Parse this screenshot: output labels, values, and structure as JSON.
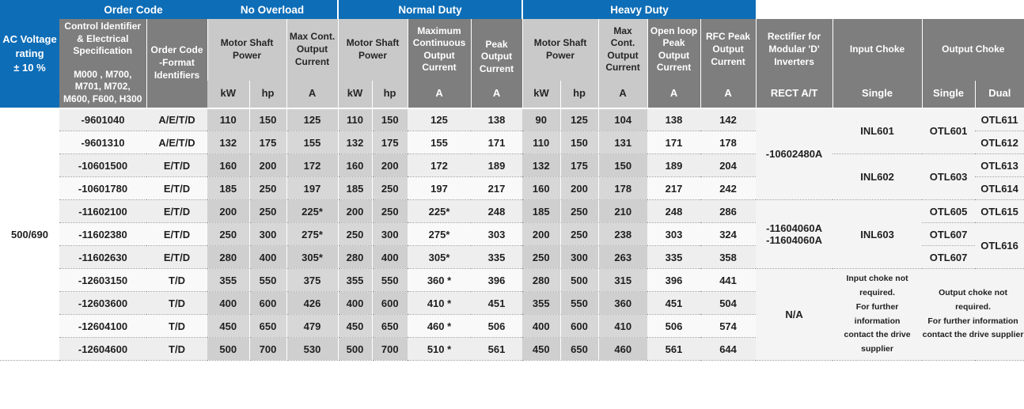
{
  "groups": {
    "order_code": "Order Code",
    "no_overload": "No Overload",
    "normal_duty": "Normal Duty",
    "heavy_duty": "Heavy Duty"
  },
  "voltage": {
    "label_lines": [
      "AC Voltage",
      "rating",
      "± 10 %"
    ],
    "value": "500/690"
  },
  "headers": {
    "control_title": "Control Identifier & Electrical Specification",
    "control_models": "M000 , M700, M701, M702, M600, F600, H300",
    "order_format": "Order Code -Format Identifiers",
    "motor_shaft_power": "Motor Shaft Power",
    "max_cont_output_current": "Max Cont. Output Current",
    "max_continuous_output_current": "Maximum Continuous Output Current",
    "peak_output_current": "Peak Output Current",
    "open_loop_peak": "Open loop Peak Output Current",
    "rfc_peak": "RFC Peak Output Current",
    "rectifier": "Rectifier for Modular 'D' Inverters",
    "input_choke": "Input Choke",
    "output_choke": "Output Choke",
    "units": {
      "kw": "kW",
      "hp": "hp",
      "a": "A",
      "rect": "RECT A/T",
      "single": "Single",
      "dual": "Dual"
    }
  },
  "rows": [
    {
      "code": "-9601040",
      "fmt": "A/E/T/D",
      "no_kw": "110",
      "no_hp": "150",
      "no_a": "125",
      "nd_kw": "110",
      "nd_hp": "150",
      "nd_a": "125",
      "nd_pk": "138",
      "hd_kw": "90",
      "hd_hp": "125",
      "hd_a": "104",
      "hd_ol": "138",
      "hd_rfc": "142"
    },
    {
      "code": "-9601310",
      "fmt": "A/E/T/D",
      "no_kw": "132",
      "no_hp": "175",
      "no_a": "155",
      "nd_kw": "132",
      "nd_hp": "175",
      "nd_a": "155",
      "nd_pk": "171",
      "hd_kw": "110",
      "hd_hp": "150",
      "hd_a": "131",
      "hd_ol": "171",
      "hd_rfc": "178"
    },
    {
      "code": "-10601500",
      "fmt": "E/T/D",
      "no_kw": "160",
      "no_hp": "200",
      "no_a": "172",
      "nd_kw": "160",
      "nd_hp": "200",
      "nd_a": "172",
      "nd_pk": "189",
      "hd_kw": "132",
      "hd_hp": "175",
      "hd_a": "150",
      "hd_ol": "189",
      "hd_rfc": "204"
    },
    {
      "code": "-10601780",
      "fmt": "E/T/D",
      "no_kw": "185",
      "no_hp": "250",
      "no_a": "197",
      "nd_kw": "185",
      "nd_hp": "250",
      "nd_a": "197",
      "nd_pk": "217",
      "hd_kw": "160",
      "hd_hp": "200",
      "hd_a": "178",
      "hd_ol": "217",
      "hd_rfc": "242"
    },
    {
      "code": "-11602100",
      "fmt": "E/T/D",
      "no_kw": "200",
      "no_hp": "250",
      "no_a": "225*",
      "nd_kw": "200",
      "nd_hp": "250",
      "nd_a": "225*",
      "nd_pk": "248",
      "hd_kw": "185",
      "hd_hp": "250",
      "hd_a": "210",
      "hd_ol": "248",
      "hd_rfc": "286"
    },
    {
      "code": "-11602380",
      "fmt": "E/T/D",
      "no_kw": "250",
      "no_hp": "300",
      "no_a": "275*",
      "nd_kw": "250",
      "nd_hp": "300",
      "nd_a": "275*",
      "nd_pk": "303",
      "hd_kw": "200",
      "hd_hp": "250",
      "hd_a": "238",
      "hd_ol": "303",
      "hd_rfc": "324"
    },
    {
      "code": "-11602630",
      "fmt": "E/T/D",
      "no_kw": "280",
      "no_hp": "400",
      "no_a": "305*",
      "nd_kw": "280",
      "nd_hp": "400",
      "nd_a": "305*",
      "nd_pk": "335",
      "hd_kw": "250",
      "hd_hp": "300",
      "hd_a": "263",
      "hd_ol": "335",
      "hd_rfc": "358"
    },
    {
      "code": "-12603150",
      "fmt": "T/D",
      "no_kw": "355",
      "no_hp": "550",
      "no_a": "375",
      "nd_kw": "355",
      "nd_hp": "550",
      "nd_a": "360 *",
      "nd_pk": "396",
      "hd_kw": "280",
      "hd_hp": "500",
      "hd_a": "315",
      "hd_ol": "396",
      "hd_rfc": "441"
    },
    {
      "code": "-12603600",
      "fmt": "T/D",
      "no_kw": "400",
      "no_hp": "600",
      "no_a": "426",
      "nd_kw": "400",
      "nd_hp": "600",
      "nd_a": "410 *",
      "nd_pk": "451",
      "hd_kw": "355",
      "hd_hp": "550",
      "hd_a": "360",
      "hd_ol": "451",
      "hd_rfc": "504"
    },
    {
      "code": "-12604100",
      "fmt": "T/D",
      "no_kw": "450",
      "no_hp": "650",
      "no_a": "479",
      "nd_kw": "450",
      "nd_hp": "650",
      "nd_a": "460 *",
      "nd_pk": "506",
      "hd_kw": "400",
      "hd_hp": "600",
      "hd_a": "410",
      "hd_ol": "506",
      "hd_rfc": "574"
    },
    {
      "code": "-12604600",
      "fmt": "T/D",
      "no_kw": "500",
      "no_hp": "700",
      "no_a": "530",
      "nd_kw": "500",
      "nd_hp": "700",
      "nd_a": "510 *",
      "nd_pk": "561",
      "hd_kw": "450",
      "hd_hp": "650",
      "hd_a": "460",
      "hd_ol": "561",
      "hd_rfc": "644"
    }
  ],
  "right": {
    "rect_group1": "-10602480A",
    "rect_group2_lines": [
      "-11604060A",
      "-11604060A"
    ],
    "rect_group3": "N/A",
    "input_group1": "INL601",
    "input_group2": "INL602",
    "input_group3": "INL603",
    "out_single_1": "OTL601",
    "out_single_2": "OTL603",
    "out_single_3": "OTL605",
    "out_single_4": "OTL607",
    "out_single_5": "OTL607",
    "out_dual_1": "OTL611",
    "out_dual_2": "OTL612",
    "out_dual_3": "OTL613",
    "out_dual_4": "OTL614",
    "out_dual_5": "OTL615",
    "out_dual_6": "OTL616",
    "input_note_lines": [
      "Input choke not required.",
      "For further information",
      "contact the drive supplier"
    ],
    "output_note_lines": [
      "Output choke not required.",
      "For further information",
      "contact the drive supplier"
    ]
  },
  "colors": {
    "header_blue": "#0d6db7",
    "header_dark_gray": "#7e7e7e",
    "header_light_gray": "#c9c9c9",
    "body_gray": "#d3d3d3",
    "body_light": "#f4f4f4"
  }
}
